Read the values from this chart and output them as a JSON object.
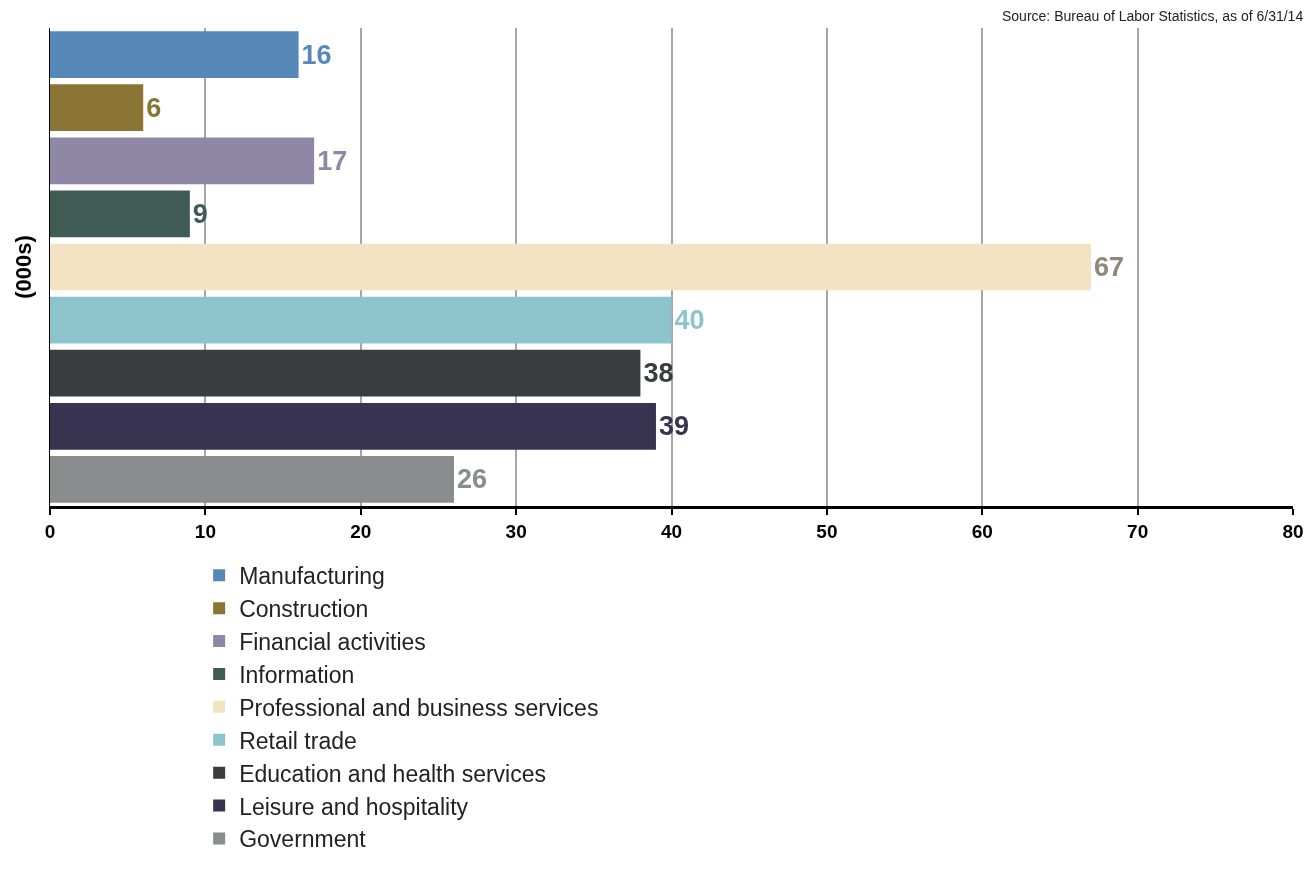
{
  "chart_data": {
    "type": "bar",
    "orientation": "horizontal",
    "ylabel": "(000s)",
    "annotations": [
      "Source: Bureau of Labor Statistics, as of 6/31/14"
    ],
    "categories": [
      null,
      null,
      null,
      null,
      null,
      null,
      null,
      null,
      null
    ],
    "series": [
      {
        "name": "Manufacturing",
        "color": "#5689b8",
        "values": [
          16,
          null,
          null,
          null,
          null,
          null,
          null,
          null,
          null
        ]
      },
      {
        "name": "Construction",
        "color": "#8a7535",
        "values": [
          null,
          6,
          null,
          null,
          null,
          null,
          null,
          null,
          null
        ]
      },
      {
        "name": "Financial activities",
        "color": "#8e88a6",
        "values": [
          null,
          null,
          17,
          null,
          null,
          null,
          null,
          null,
          null
        ]
      },
      {
        "name": "Information",
        "color": "#3e5c54",
        "values": [
          null,
          null,
          null,
          9,
          null,
          null,
          null,
          null,
          null
        ]
      },
      {
        "name": "Professional and business services",
        "color": "#f3e3c3",
        "values": [
          null,
          null,
          null,
          null,
          67,
          null,
          null,
          null,
          null
        ]
      },
      {
        "name": "Retail trade",
        "color": "#8dc3cc",
        "values": [
          null,
          null,
          null,
          null,
          null,
          40,
          null,
          null,
          null
        ]
      },
      {
        "name": "Education and health services",
        "color": "#3a3d40",
        "values": [
          null,
          null,
          null,
          null,
          null,
          null,
          38,
          null,
          null
        ]
      },
      {
        "name": "Leisure and hospitality",
        "color": "#393352",
        "values": [
          null,
          null,
          null,
          null,
          null,
          null,
          null,
          39,
          null
        ]
      },
      {
        "name": "Government",
        "color": "#8b8c8e",
        "values": [
          null,
          null,
          null,
          null,
          null,
          null,
          null,
          null,
          26
        ]
      }
    ],
    "xlim": [
      0,
      80
    ],
    "xticks": [
      0,
      10,
      20,
      30,
      40,
      50,
      60,
      70,
      80
    ],
    "grid": "x",
    "legend": "bottom",
    "data_labels": true
  }
}
